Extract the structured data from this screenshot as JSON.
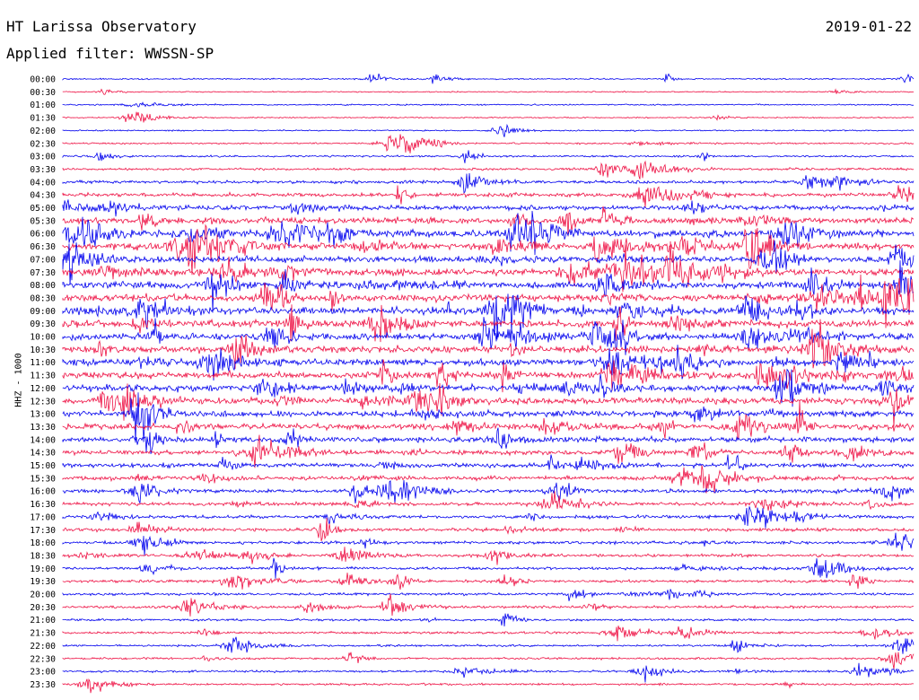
{
  "header": {
    "title": "HT Larissa Observatory",
    "filter": "Applied filter: WWSSN-SP",
    "date": "2019-01-22"
  },
  "side_label": "HHZ - 1000",
  "colors": {
    "trace_a": "#0000ee",
    "trace_b": "#ee1144",
    "background": "#ffffff",
    "text": "#000000"
  },
  "chart_data": {
    "type": "line",
    "row_labels": [
      "00:00",
      "00:30",
      "01:00",
      "01:30",
      "02:00",
      "02:30",
      "03:00",
      "03:30",
      "04:00",
      "04:30",
      "05:00",
      "05:30",
      "06:00",
      "06:30",
      "07:00",
      "07:30",
      "08:00",
      "08:30",
      "09:00",
      "09:30",
      "10:00",
      "10:30",
      "11:00",
      "11:30",
      "12:00",
      "12:30",
      "13:00",
      "13:30",
      "14:00",
      "14:30",
      "15:00",
      "15:30",
      "16:00",
      "16:30",
      "17:00",
      "17:30",
      "18:00",
      "18:30",
      "19:00",
      "19:30",
      "20:00",
      "20:30",
      "21:00",
      "21:30",
      "22:00",
      "22:30",
      "23:00",
      "23:30"
    ],
    "row_colors": [
      "trace_a",
      "trace_b"
    ],
    "ylabel": "HHZ - 1000",
    "noise_level": [
      0.6,
      0.5,
      0.6,
      0.5,
      0.6,
      0.7,
      0.8,
      1.0,
      1.3,
      1.6,
      2.0,
      2.6,
      3.2,
      3.0,
      2.8,
      2.9,
      3.1,
      3.0,
      3.1,
      3.0,
      2.9,
      3.0,
      2.9,
      2.8,
      2.7,
      2.8,
      2.6,
      2.5,
      2.3,
      2.0,
      1.9,
      1.8,
      1.6,
      1.5,
      1.4,
      1.4,
      1.3,
      1.3,
      1.2,
      1.2,
      1.1,
      1.1,
      1.0,
      1.0,
      0.9,
      0.9,
      0.9,
      0.9
    ]
  }
}
